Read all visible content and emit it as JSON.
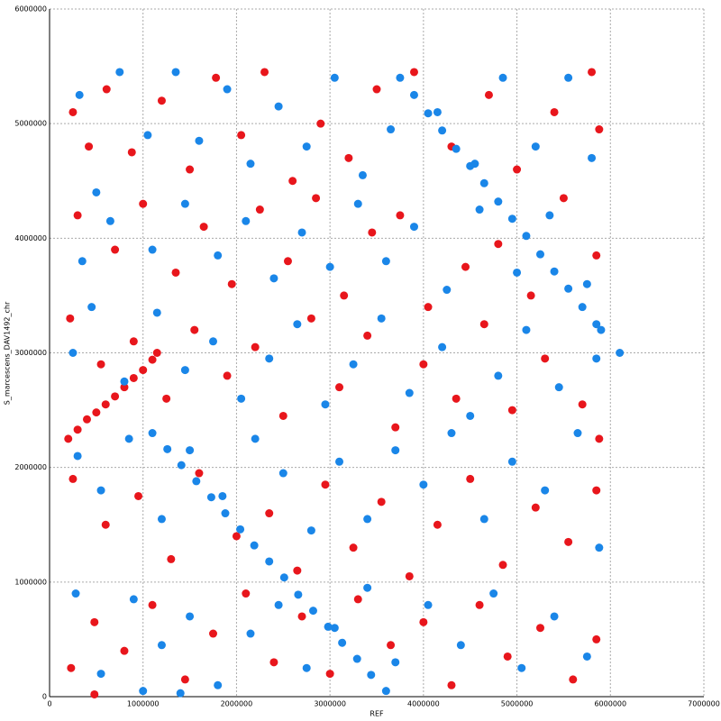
{
  "chart_data": {
    "type": "scatter",
    "x_label": "REF",
    "y_label": "S_marcescens_DAV1492_chr",
    "xlim": [
      0,
      7000000
    ],
    "ylim": [
      0,
      6000000
    ],
    "xticks": [
      0,
      1000000,
      2000000,
      3000000,
      4000000,
      5000000,
      6000000,
      7000000
    ],
    "yticks": [
      0,
      1000000,
      2000000,
      3000000,
      4000000,
      5000000,
      6000000
    ],
    "grid": true,
    "series": [
      {
        "color": "#e8161c",
        "x": [
          250000,
          420000,
          610000,
          880000,
          1200000,
          1500000,
          1780000,
          2050000,
          2300000,
          2600000,
          2900000,
          3200000,
          3500000,
          3900000,
          4300000,
          4700000,
          5000000,
          5400000,
          5800000,
          5880000,
          300000,
          700000,
          1000000,
          1350000,
          1650000,
          1950000,
          2250000,
          2550000,
          2850000,
          3150000,
          3450000,
          3750000,
          4050000,
          4450000,
          4800000,
          5150000,
          5500000,
          5850000,
          220000,
          550000,
          900000,
          1250000,
          1550000,
          1900000,
          2200000,
          2500000,
          2800000,
          3100000,
          3400000,
          3700000,
          4000000,
          4350000,
          4650000,
          4950000,
          5300000,
          5700000,
          5880000,
          250000,
          600000,
          950000,
          1300000,
          1600000,
          2000000,
          2350000,
          2650000,
          2950000,
          3250000,
          3550000,
          3850000,
          4150000,
          4500000,
          4850000,
          5200000,
          5550000,
          5850000,
          230000,
          480000,
          800000,
          1100000,
          1450000,
          1750000,
          2100000,
          2400000,
          2700000,
          3000000,
          3300000,
          3650000,
          4000000,
          4300000,
          4600000,
          4900000,
          5250000,
          5600000,
          5850000,
          480000,
          200000,
          300000,
          400000,
          500000,
          600000,
          700000,
          800000,
          900000,
          1000000,
          1100000,
          1150000
        ],
        "values": [
          5100000,
          4800000,
          5300000,
          4750000,
          5200000,
          4600000,
          5400000,
          4900000,
          5450000,
          4500000,
          5000000,
          4700000,
          5300000,
          5450000,
          4800000,
          5250000,
          4600000,
          5100000,
          5450000,
          4950000,
          4200000,
          3900000,
          4300000,
          3700000,
          4100000,
          3600000,
          4250000,
          3800000,
          4350000,
          3500000,
          4050000,
          4200000,
          3400000,
          3750000,
          3950000,
          3500000,
          4350000,
          3850000,
          3300000,
          2900000,
          3100000,
          2600000,
          3200000,
          2800000,
          3050000,
          2450000,
          3300000,
          2700000,
          3150000,
          2350000,
          2900000,
          2600000,
          3250000,
          2500000,
          2950000,
          2550000,
          2250000,
          1900000,
          1500000,
          1750000,
          1200000,
          1950000,
          1400000,
          1600000,
          1100000,
          1850000,
          1300000,
          1700000,
          1050000,
          1500000,
          1900000,
          1150000,
          1650000,
          1350000,
          1800000,
          250000,
          650000,
          400000,
          800000,
          150000,
          550000,
          900000,
          300000,
          700000,
          200000,
          850000,
          450000,
          650000,
          100000,
          800000,
          350000,
          600000,
          150000,
          500000,
          20000,
          2250000,
          2330000,
          2420000,
          2480000,
          2550000,
          2620000,
          2700000,
          2780000,
          2850000,
          2940000,
          3000000
        ]
      },
      {
        "color": "#1a86e8",
        "x": [
          320000,
          500000,
          750000,
          1050000,
          1350000,
          1600000,
          1900000,
          2150000,
          2450000,
          2750000,
          3050000,
          3350000,
          3650000,
          4150000,
          4550000,
          4850000,
          5200000,
          5550000,
          5800000,
          350000,
          650000,
          1100000,
          1450000,
          1800000,
          2100000,
          2400000,
          2700000,
          3000000,
          3300000,
          3600000,
          3900000,
          4250000,
          4600000,
          5000000,
          5350000,
          5750000,
          250000,
          450000,
          800000,
          1150000,
          1450000,
          1750000,
          2050000,
          2350000,
          2650000,
          2950000,
          3250000,
          3550000,
          3850000,
          4200000,
          4500000,
          4800000,
          5100000,
          5450000,
          5850000,
          6100000,
          300000,
          550000,
          850000,
          1200000,
          1500000,
          1850000,
          2200000,
          2500000,
          2800000,
          3100000,
          3400000,
          3700000,
          4000000,
          4300000,
          4650000,
          4950000,
          5300000,
          5650000,
          5880000,
          280000,
          550000,
          900000,
          1200000,
          1500000,
          1800000,
          2150000,
          2450000,
          2750000,
          3050000,
          3400000,
          3700000,
          4050000,
          4400000,
          4750000,
          5050000,
          5400000,
          5750000,
          1000000,
          1400000,
          3750000,
          3900000,
          4050000,
          4200000,
          4350000,
          4500000,
          4650000,
          4800000,
          4950000,
          5100000,
          5250000,
          5400000,
          5550000,
          5700000,
          5850000,
          5900000,
          1100000,
          1260000,
          1410000,
          1570000,
          1730000,
          1880000,
          2040000,
          2190000,
          2350000,
          2510000,
          2660000,
          2820000,
          2980000,
          3130000,
          3290000,
          3440000,
          3600000
        ],
        "values": [
          5250000,
          4400000,
          5450000,
          4900000,
          5450000,
          4850000,
          5300000,
          4650000,
          5150000,
          4800000,
          5400000,
          4550000,
          4950000,
          5100000,
          4650000,
          5400000,
          4800000,
          5400000,
          4700000,
          3800000,
          4150000,
          3900000,
          4300000,
          3850000,
          4150000,
          3650000,
          4050000,
          3750000,
          4300000,
          3800000,
          4100000,
          3550000,
          4250000,
          3700000,
          4200000,
          3600000,
          3000000,
          3400000,
          2750000,
          3350000,
          2850000,
          3100000,
          2600000,
          2950000,
          3250000,
          2550000,
          2900000,
          3300000,
          2650000,
          3050000,
          2450000,
          2800000,
          3200000,
          2700000,
          2950000,
          3000000,
          2100000,
          1800000,
          2250000,
          1550000,
          2150000,
          1750000,
          2250000,
          1950000,
          1450000,
          2050000,
          1550000,
          2150000,
          1850000,
          2300000,
          1550000,
          2050000,
          1800000,
          2300000,
          1300000,
          900000,
          200000,
          850000,
          450000,
          700000,
          100000,
          550000,
          800000,
          250000,
          600000,
          950000,
          300000,
          800000,
          450000,
          900000,
          250000,
          700000,
          350000,
          50000,
          30000,
          5400000,
          5250000,
          5090000,
          4940000,
          4780000,
          4630000,
          4480000,
          4320000,
          4170000,
          4020000,
          3860000,
          3710000,
          3560000,
          3400000,
          3250000,
          3200000,
          2300000,
          2160000,
          2020000,
          1880000,
          1740000,
          1600000,
          1460000,
          1320000,
          1180000,
          1040000,
          890000,
          750000,
          610000,
          470000,
          330000,
          190000,
          50000
        ]
      }
    ]
  }
}
